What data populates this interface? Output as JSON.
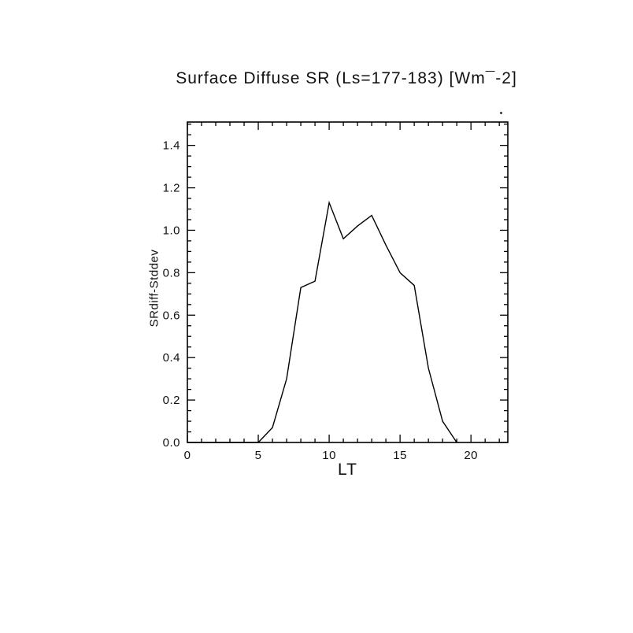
{
  "chart_data": {
    "type": "line",
    "title": "Surface Diffuse SR (Ls=177-183) [Wm¯-2]",
    "xlabel": "LT",
    "ylabel": "SRdiff-Stddev",
    "xlim": [
      0,
      22.6
    ],
    "ylim": [
      0,
      1.51
    ],
    "x_major": 5,
    "x_minor": 1,
    "y_major": 0.2,
    "y_minor": 0.05,
    "grid": false,
    "legend": "none",
    "line_color": "#000000",
    "xticks": [
      {
        "v": 0,
        "label": "0"
      },
      {
        "v": 5,
        "label": "5"
      },
      {
        "v": 10,
        "label": "10"
      },
      {
        "v": 15,
        "label": "15"
      },
      {
        "v": 20,
        "label": "20"
      }
    ],
    "yticks": [
      {
        "v": 0.0,
        "label": "0.0"
      },
      {
        "v": 0.2,
        "label": "0.2"
      },
      {
        "v": 0.4,
        "label": "0.4"
      },
      {
        "v": 0.6,
        "label": "0.6"
      },
      {
        "v": 0.8,
        "label": "0.8"
      },
      {
        "v": 1.0,
        "label": "1.0"
      },
      {
        "v": 1.2,
        "label": "1.2"
      },
      {
        "v": 1.4,
        "label": "1.4"
      }
    ],
    "series": [
      {
        "name": "SRdiff-Stddev",
        "x": [
          0,
          1,
          2,
          3,
          4,
          5,
          6,
          7,
          8,
          9,
          10,
          11,
          12,
          13,
          14,
          15,
          16,
          17,
          18,
          19
        ],
        "y": [
          0.0,
          0.0,
          0.0,
          0.0,
          0.0,
          0.0,
          0.07,
          0.3,
          0.73,
          0.76,
          1.13,
          0.96,
          1.02,
          1.07,
          0.93,
          0.8,
          0.74,
          0.35,
          0.1,
          0.0
        ]
      }
    ]
  }
}
